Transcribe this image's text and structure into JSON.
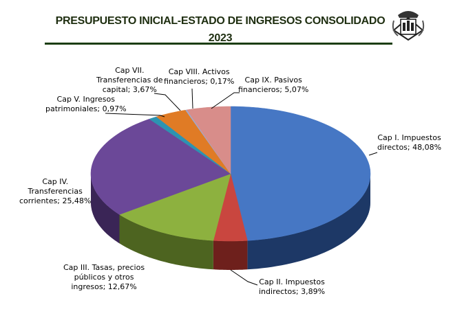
{
  "chart_data": {
    "type": "pie",
    "title": "PRESUPUESTO INICIAL-ESTADO DE INGRESOS CONSOLIDADO",
    "subtitle": "2023",
    "slices": [
      {
        "name": "Cap I. Impuestos directos",
        "value": 48.08,
        "label": "Cap I. Impuestos directos; 48,08%",
        "color": "#4677c4",
        "side": "#1d3866"
      },
      {
        "name": "Cap II. Impuestos indirectos",
        "value": 3.89,
        "label": "Cap II. Impuestos indirectos; 3,89%",
        "color": "#c9463f",
        "side": "#6e201c"
      },
      {
        "name": "Cap III. Tasas, precios públicos y otros ingresos",
        "value": 12.67,
        "label": "Cap III. Tasas, precios públicos y otros ingresos; 12,67%",
        "color": "#8db13f",
        "side": "#4d6420"
      },
      {
        "name": "Cap IV. Transferencias corrientes",
        "value": 25.48,
        "label": "Cap IV. Transferencias corrientes; 25,48%",
        "color": "#6b4898",
        "side": "#3a2556"
      },
      {
        "name": "Cap V. Ingresos patrimoniales",
        "value": 0.97,
        "label": "Cap V. Ingresos patrimoniales; 0,97%",
        "color": "#2d93b1",
        "side": "#175263"
      },
      {
        "name": "Cap VII. Transferencias de capital",
        "value": 3.67,
        "label": "Cap VII. Transferencias de capital; 3,67%",
        "color": "#e07b25",
        "side": "#86450f"
      },
      {
        "name": "Cap VIII. Activos financieros",
        "value": 0.17,
        "label": "Cap VIII. Activos financieros; 0,17%",
        "color": "#9fa9cc",
        "side": "#5a617a"
      },
      {
        "name": "Cap IX. Pasivos financieros",
        "value": 5.07,
        "label": "Cap IX. Pasivos financieros; 5,07%",
        "color": "#d88d8a",
        "side": "#8a4a48"
      }
    ],
    "legend": "none",
    "start": "top",
    "direction": "clockwise"
  },
  "labels": {
    "l1": [
      "Cap I. Impuestos",
      "directos; 48,08%"
    ],
    "l2": [
      "Cap II. Impuestos",
      "indirectos; 3,89%"
    ],
    "l3": [
      "Cap III. Tasas, precios",
      "públicos y otros",
      "ingresos; 12,67%"
    ],
    "l4": [
      "Cap IV.",
      "Transferencias",
      "corrientes; 25,48%"
    ],
    "l5": [
      "Cap V. Ingresos",
      "patrimoniales; 0,97%"
    ],
    "l7": [
      "Cap VII.",
      "Transferencias de",
      "capital; 3,67%"
    ],
    "l8": [
      "Cap VIII. Activos",
      "financieros; 0,17%"
    ],
    "l9": [
      "Cap IX. Pasivos",
      "financieros; 5,07%"
    ]
  }
}
